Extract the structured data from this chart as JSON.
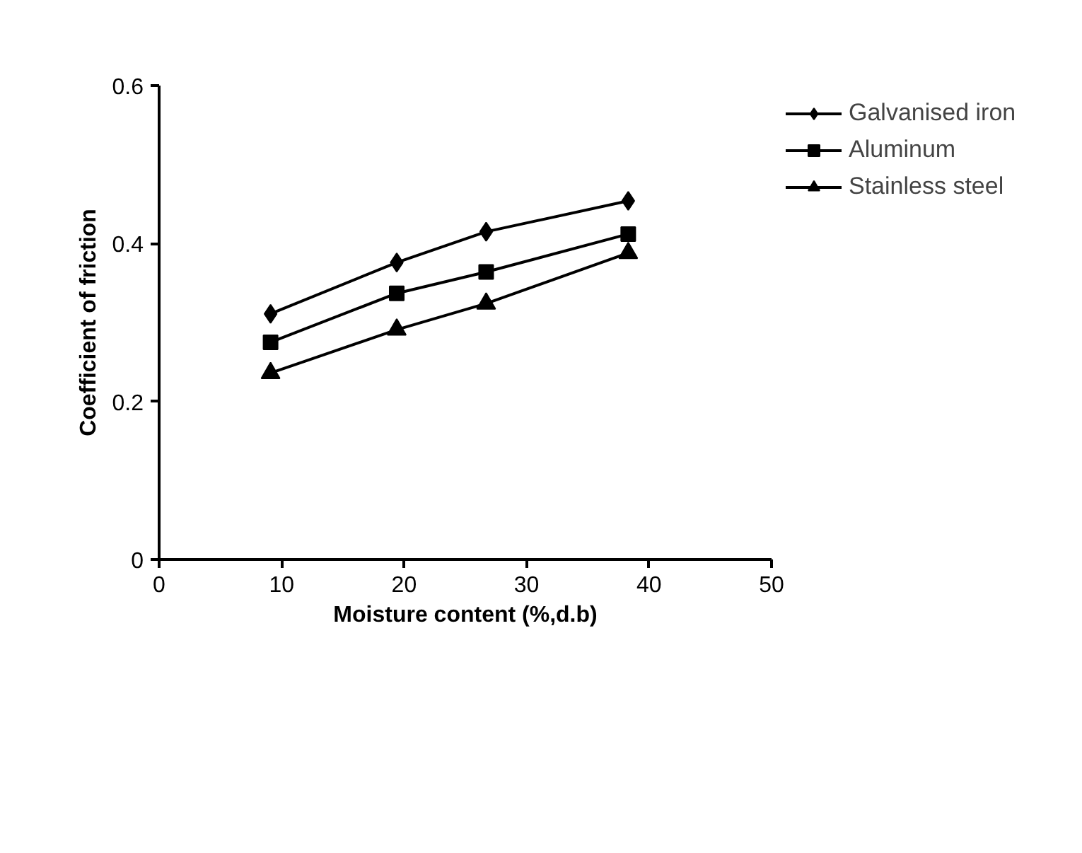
{
  "chart_data": {
    "type": "line",
    "xlabel": "Moisture content (%,d.b)",
    "ylabel": "Coefficient of friction",
    "x": [
      9.1,
      19.4,
      26.7,
      38.3
    ],
    "series": [
      {
        "name": "Galvanised iron",
        "color": "#000000",
        "marker": "diamond",
        "values": [
          0.311,
          0.376,
          0.415,
          0.454
        ]
      },
      {
        "name": "Aluminum",
        "color": "#000000",
        "marker": "square",
        "values": [
          0.275,
          0.337,
          0.364,
          0.412
        ]
      },
      {
        "name": "Stainless steel",
        "color": "#000000",
        "marker": "triangle",
        "values": [
          0.236,
          0.291,
          0.324,
          0.388
        ]
      }
    ],
    "xlim": [
      0,
      50
    ],
    "xticks": [
      0,
      10,
      20,
      30,
      40,
      50
    ],
    "ylim": [
      0,
      0.6
    ],
    "yticks": [
      0,
      {
        "value": 0.2,
        "label": "0.2"
      },
      {
        "value": 0.4,
        "label": "0.4"
      },
      {
        "value": 0.6,
        "label": "0.6"
      }
    ],
    "grid": false,
    "legend": "top right",
    "line_style": "solid"
  }
}
